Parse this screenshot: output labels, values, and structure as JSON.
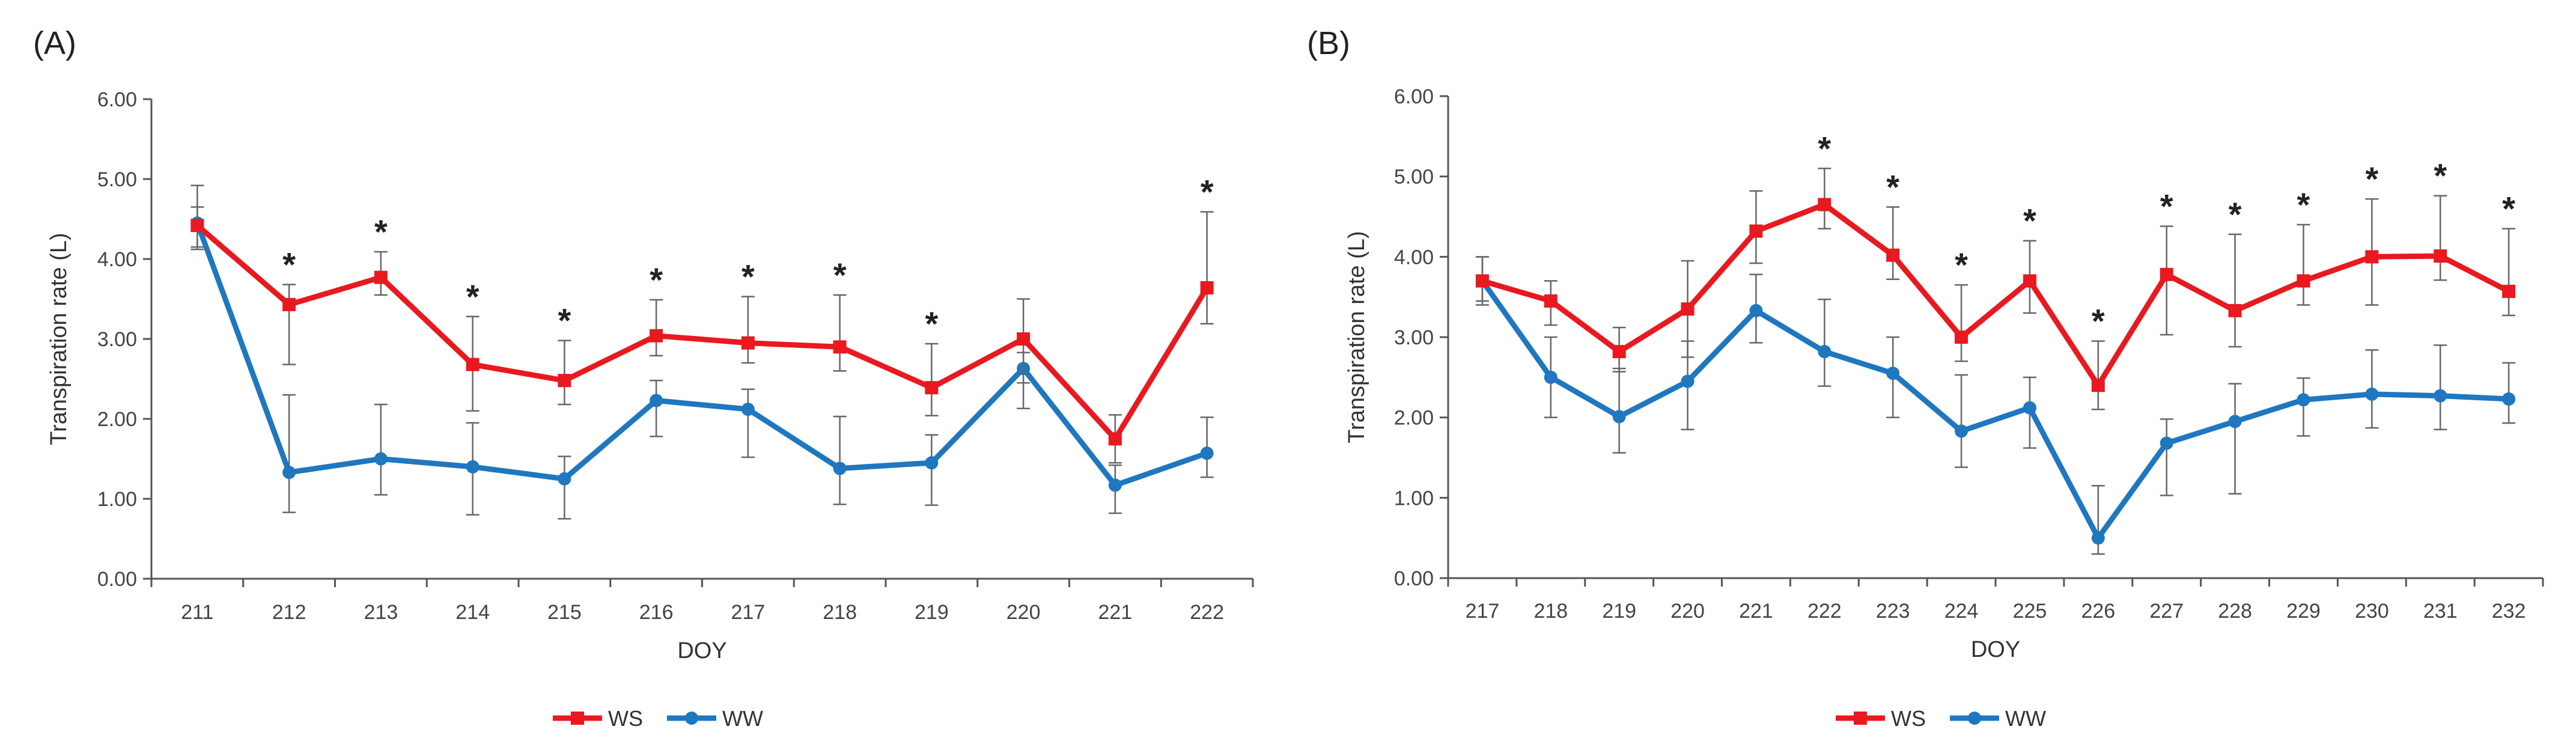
{
  "chart_data": [
    {
      "type": "line",
      "panel_label": "(A)",
      "title": "",
      "xlabel": "DOY",
      "ylabel": "Transpiration rate (L)",
      "ylim": [
        0,
        6
      ],
      "yticks": [
        "0.00",
        "1.00",
        "2.00",
        "3.00",
        "4.00",
        "5.00",
        "6.00"
      ],
      "categories": [
        "211",
        "212",
        "213",
        "214",
        "215",
        "216",
        "217",
        "218",
        "219",
        "220",
        "221",
        "222"
      ],
      "series": [
        {
          "name": "WS",
          "color": "#e8191f",
          "marker": "square",
          "values": [
            4.42,
            3.43,
            3.77,
            2.68,
            2.48,
            3.04,
            2.95,
            2.9,
            2.39,
            3.0,
            1.75,
            3.64
          ],
          "err_low": [
            0.3,
            0.75,
            0.22,
            0.58,
            0.3,
            0.25,
            0.25,
            0.3,
            0.35,
            0.55,
            0.3,
            0.45
          ],
          "err_high": [
            0.5,
            0.25,
            0.32,
            0.6,
            0.5,
            0.45,
            0.58,
            0.65,
            0.55,
            0.5,
            0.3,
            0.95
          ]
        },
        {
          "name": "WW",
          "color": "#1f77bf",
          "marker": "circle",
          "values": [
            4.45,
            1.33,
            1.5,
            1.4,
            1.25,
            2.23,
            2.12,
            1.38,
            1.45,
            2.63,
            1.17,
            1.57
          ],
          "err_low": [
            0.3,
            0.5,
            0.45,
            0.6,
            0.5,
            0.45,
            0.6,
            0.45,
            0.53,
            0.5,
            0.35,
            0.3
          ],
          "err_high": [
            0.2,
            0.97,
            0.68,
            0.55,
            0.28,
            0.25,
            0.25,
            0.65,
            0.35,
            0.2,
            0.25,
            0.45
          ]
        }
      ],
      "significant": [
        false,
        true,
        true,
        true,
        true,
        true,
        true,
        true,
        true,
        false,
        false,
        true
      ],
      "significance_symbol": "*",
      "legend": [
        "WS",
        "WW"
      ],
      "legend_position": "bottom"
    },
    {
      "type": "line",
      "panel_label": "(B)",
      "title": "",
      "xlabel": "DOY",
      "ylabel": "Transpiration rate (L)",
      "ylim": [
        0,
        6
      ],
      "yticks": [
        "0.00",
        "1.00",
        "2.00",
        "3.00",
        "4.00",
        "5.00",
        "6.00"
      ],
      "categories": [
        "217",
        "218",
        "219",
        "220",
        "221",
        "222",
        "223",
        "224",
        "225",
        "226",
        "227",
        "228",
        "229",
        "230",
        "231",
        "232"
      ],
      "series": [
        {
          "name": "WS",
          "color": "#e8191f",
          "marker": "square",
          "values": [
            3.7,
            3.45,
            2.82,
            3.35,
            4.32,
            4.65,
            4.02,
            3.0,
            3.7,
            2.4,
            3.78,
            3.33,
            3.7,
            4.0,
            4.01,
            3.57
          ],
          "err_low": [
            0.25,
            0.3,
            0.25,
            0.6,
            0.4,
            0.3,
            0.3,
            0.3,
            0.4,
            0.3,
            0.75,
            0.45,
            0.3,
            0.6,
            0.3,
            0.3
          ],
          "err_high": [
            0.3,
            0.25,
            0.3,
            0.6,
            0.5,
            0.45,
            0.6,
            0.65,
            0.5,
            0.55,
            0.6,
            0.95,
            0.7,
            0.72,
            0.75,
            0.78
          ]
        },
        {
          "name": "WW",
          "color": "#1f77bf",
          "marker": "circle",
          "values": [
            3.7,
            2.5,
            2.01,
            2.45,
            3.33,
            2.82,
            2.55,
            1.83,
            2.12,
            0.5,
            1.68,
            1.95,
            2.22,
            2.29,
            2.27,
            2.23
          ],
          "err_low": [
            0.3,
            0.5,
            0.45,
            0.6,
            0.4,
            0.43,
            0.55,
            0.45,
            0.5,
            0.2,
            0.65,
            0.9,
            0.45,
            0.42,
            0.42,
            0.3
          ],
          "err_high": [
            0.3,
            0.5,
            0.6,
            0.5,
            0.45,
            0.65,
            0.45,
            0.7,
            0.38,
            0.65,
            0.3,
            0.47,
            0.27,
            0.55,
            0.63,
            0.45
          ]
        }
      ],
      "significant": [
        false,
        false,
        false,
        false,
        false,
        true,
        true,
        true,
        true,
        true,
        true,
        true,
        true,
        true,
        true,
        true
      ],
      "significance_symbol": "*",
      "legend": [
        "WS",
        "WW"
      ],
      "legend_position": "bottom"
    }
  ]
}
